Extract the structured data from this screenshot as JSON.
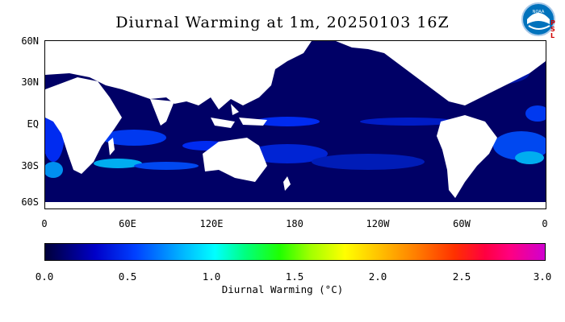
{
  "title": "Diurnal Warming at 1m, 20250103 16Z",
  "logo": {
    "icon": "noaa-logo-icon",
    "side_text": "PSL"
  },
  "map": {
    "lat_labels": [
      "60N",
      "30N",
      "EQ",
      "30S",
      "60S"
    ],
    "lon_labels": [
      "0",
      "60E",
      "120E",
      "180",
      "120W",
      "60W",
      "0"
    ],
    "ocean_color": "#000066",
    "land_color": "#ffffff"
  },
  "colorbar": {
    "tick_labels": [
      "0.0",
      "0.5",
      "1.0",
      "1.5",
      "2.0",
      "2.5",
      "3.0"
    ],
    "title": "Diurnal Warming (°C)",
    "range": [
      0.0,
      3.0
    ]
  }
}
